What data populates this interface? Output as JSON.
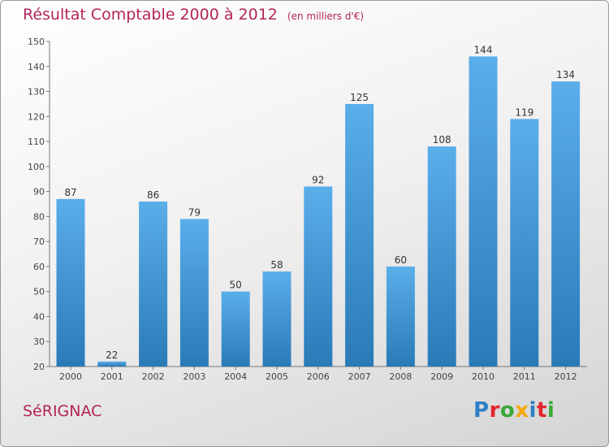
{
  "title": "Résultat Comptable 2000 à 2012",
  "subtitle": "(en milliers d'€)",
  "city": "SéRIGNAC",
  "brand": {
    "text": "Proxiti",
    "letters": [
      {
        "char": "P",
        "color": "#2f7fc6"
      },
      {
        "char": "r",
        "color": "#e3262f"
      },
      {
        "char": "o",
        "color": "#3aa935"
      },
      {
        "char": "x",
        "color": "#f7a800"
      },
      {
        "char": "i",
        "color": "#2f7fc6"
      },
      {
        "char": "t",
        "color": "#e3262f"
      },
      {
        "char": "i",
        "color": "#3aa935"
      }
    ]
  },
  "colors": {
    "title": "#b3245a",
    "bar_light": "#5aaeea",
    "bar_dark": "#2a7ab8"
  },
  "chart_data": {
    "type": "bar",
    "categories": [
      "2000",
      "2001",
      "2002",
      "2003",
      "2004",
      "2005",
      "2006",
      "2007",
      "2008",
      "2009",
      "2010",
      "2011",
      "2012"
    ],
    "values": [
      87,
      22,
      86,
      79,
      50,
      58,
      92,
      125,
      60,
      108,
      144,
      119,
      134
    ],
    "ylim": [
      20,
      150
    ],
    "yticks": [
      20,
      30,
      40,
      50,
      60,
      70,
      80,
      90,
      100,
      110,
      120,
      130,
      140,
      150
    ],
    "grid": false,
    "data_labels": true
  }
}
